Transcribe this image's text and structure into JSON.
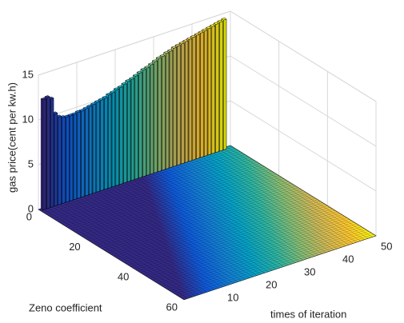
{
  "chart_data": {
    "type": "bar3",
    "xlabel": "times of iteration",
    "ylabel": "Zeno coefficient",
    "zlabel": "gas price(cent per kw.h)",
    "xlim": [
      0,
      50
    ],
    "xticks": [
      10,
      20,
      30,
      40,
      50
    ],
    "ylim": [
      0,
      60
    ],
    "yticks": [
      0,
      20,
      40,
      60
    ],
    "zlim": [
      0,
      15
    ],
    "zticks": [
      0,
      5,
      10,
      15
    ],
    "grid": true,
    "colormap": [
      "#352a87",
      "#0f5cdd",
      "#1481d6",
      "#06a4ca",
      "#2eb7a4",
      "#87bf77",
      "#d1bb59",
      "#fec832",
      "#f9fb0e"
    ],
    "values": [
      12.3,
      12.4,
      12.1,
      10.3,
      9.8,
      9.6,
      9.5,
      9.5,
      9.5,
      9.6,
      9.6,
      9.7,
      9.8,
      9.9,
      10.0,
      10.1,
      10.2,
      10.4,
      10.5,
      10.7,
      10.8,
      11.0,
      11.2,
      11.3,
      11.5,
      11.7,
      11.9,
      12.0,
      12.2,
      12.4,
      12.6,
      12.7,
      12.9,
      13.0,
      13.2,
      13.3,
      13.4,
      13.5,
      13.6,
      13.7,
      13.8,
      13.9,
      14.0,
      14.1,
      14.2,
      14.3,
      14.4,
      14.5
    ]
  }
}
